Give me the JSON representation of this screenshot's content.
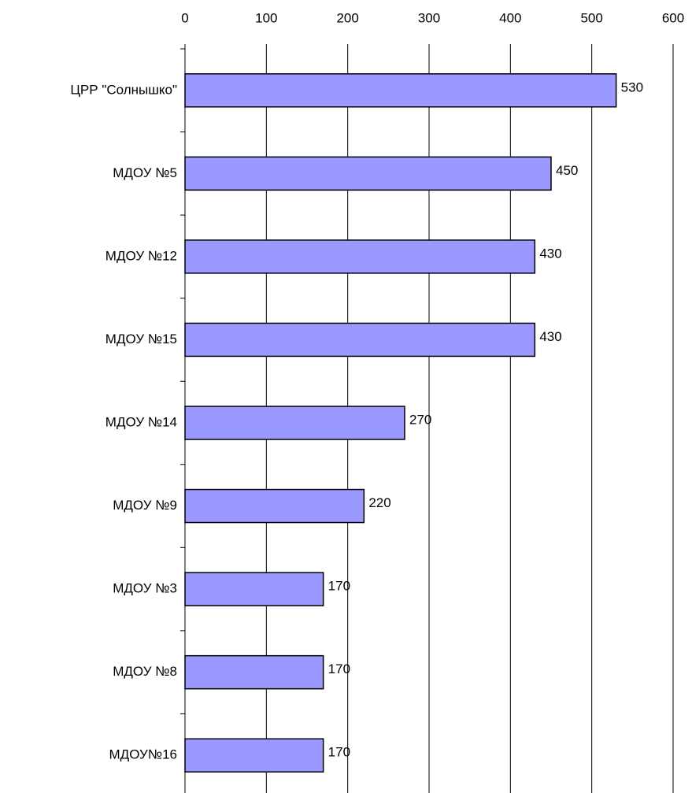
{
  "chart_data": {
    "type": "barh",
    "categories": [
      "ЦРР \"Солнышко\"",
      "МДОУ №5",
      "МДОУ №12",
      "МДОУ №15",
      "МДОУ №14",
      "МДОУ №9",
      "МДОУ №3",
      "МДОУ №8",
      "МДОУ№16"
    ],
    "values": [
      530,
      450,
      430,
      430,
      270,
      220,
      170,
      170,
      170
    ],
    "color": "#9999ff",
    "xlim": [
      0,
      600
    ],
    "xticks": [
      0,
      100,
      200,
      300,
      400,
      500,
      600
    ],
    "grid": true
  }
}
